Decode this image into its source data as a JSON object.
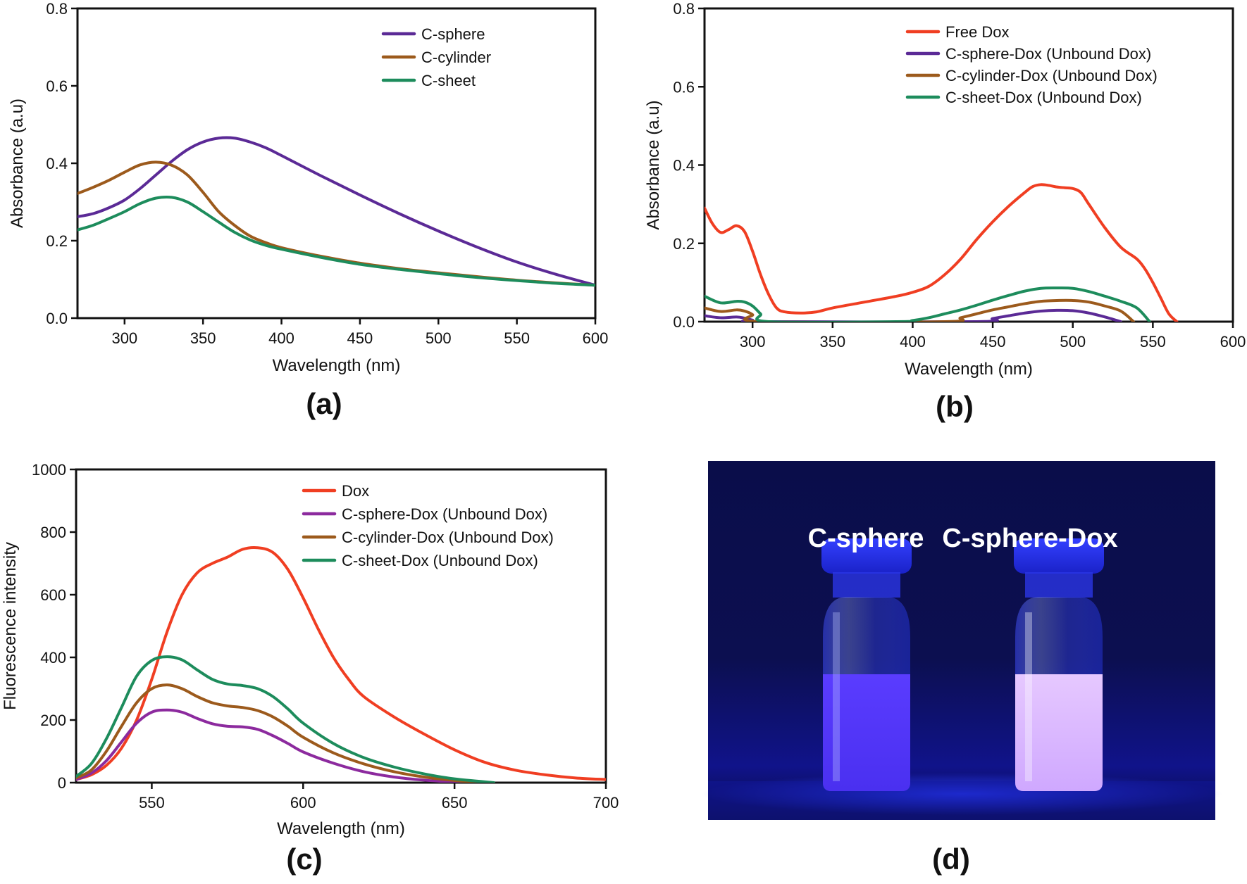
{
  "chart_data": [
    {
      "type": "line",
      "panel_label": "(a)",
      "xlabel": "Wavelength (nm)",
      "ylabel": "Absorbance (a.u)",
      "xlim": [
        270,
        600
      ],
      "ylim": [
        0.0,
        0.8
      ],
      "xticks": [
        300,
        350,
        400,
        450,
        500,
        550,
        600
      ],
      "yticks": [
        0.0,
        0.2,
        0.4,
        0.6,
        0.8
      ],
      "ytick_labels": [
        "0.0",
        "0.2",
        "0.4",
        "0.6",
        "0.8"
      ],
      "legend": "top-right",
      "series": [
        {
          "name": "C-sphere",
          "color": "#5b2a96",
          "x": [
            270,
            280,
            290,
            300,
            310,
            320,
            330,
            340,
            350,
            360,
            370,
            380,
            390,
            400,
            425,
            450,
            475,
            500,
            525,
            550,
            575,
            600
          ],
          "y": [
            0.262,
            0.27,
            0.285,
            0.305,
            0.335,
            0.37,
            0.405,
            0.435,
            0.455,
            0.465,
            0.465,
            0.455,
            0.44,
            0.42,
            0.368,
            0.318,
            0.27,
            0.225,
            0.183,
            0.145,
            0.113,
            0.085
          ]
        },
        {
          "name": "C-cylinder",
          "color": "#9c5a1c",
          "x": [
            270,
            280,
            290,
            300,
            310,
            320,
            330,
            340,
            350,
            360,
            370,
            380,
            390,
            400,
            425,
            450,
            475,
            500,
            525,
            550,
            575,
            600
          ],
          "y": [
            0.322,
            0.338,
            0.356,
            0.377,
            0.396,
            0.403,
            0.395,
            0.37,
            0.325,
            0.275,
            0.24,
            0.212,
            0.195,
            0.182,
            0.16,
            0.142,
            0.128,
            0.117,
            0.107,
            0.098,
            0.091,
            0.085
          ]
        },
        {
          "name": "C-sheet",
          "color": "#1d8c5c",
          "x": [
            270,
            280,
            290,
            300,
            310,
            320,
            330,
            340,
            350,
            360,
            370,
            380,
            390,
            400,
            425,
            450,
            475,
            500,
            525,
            550,
            575,
            600
          ],
          "y": [
            0.228,
            0.24,
            0.257,
            0.275,
            0.296,
            0.31,
            0.312,
            0.3,
            0.275,
            0.248,
            0.222,
            0.202,
            0.188,
            0.178,
            0.157,
            0.139,
            0.126,
            0.115,
            0.105,
            0.097,
            0.09,
            0.085
          ]
        }
      ]
    },
    {
      "type": "line",
      "panel_label": "(b)",
      "xlabel": "Wavelength (nm)",
      "ylabel": "Absorbance (a.u)",
      "xlim": [
        270,
        600
      ],
      "ylim": [
        0.0,
        0.8
      ],
      "xticks": [
        300,
        350,
        400,
        450,
        500,
        550,
        600
      ],
      "yticks": [
        0.0,
        0.2,
        0.4,
        0.6,
        0.8
      ],
      "ytick_labels": [
        "0.0",
        "0.2",
        "0.4",
        "0.6",
        "0.8"
      ],
      "legend": "top-right",
      "series": [
        {
          "name": "Free Dox",
          "color": "#f03e22",
          "x": [
            270,
            275,
            280,
            285,
            290,
            295,
            300,
            305,
            310,
            315,
            320,
            330,
            340,
            350,
            370,
            390,
            400,
            410,
            420,
            430,
            440,
            450,
            460,
            470,
            475,
            480,
            485,
            490,
            495,
            500,
            505,
            510,
            520,
            530,
            540,
            545,
            550,
            555,
            560,
            565
          ],
          "y": [
            0.29,
            0.25,
            0.228,
            0.235,
            0.245,
            0.23,
            0.18,
            0.12,
            0.07,
            0.035,
            0.025,
            0.022,
            0.025,
            0.035,
            0.05,
            0.065,
            0.075,
            0.09,
            0.12,
            0.16,
            0.21,
            0.255,
            0.295,
            0.33,
            0.345,
            0.35,
            0.348,
            0.344,
            0.342,
            0.34,
            0.33,
            0.3,
            0.24,
            0.19,
            0.16,
            0.135,
            0.1,
            0.06,
            0.02,
            0.0
          ]
        },
        {
          "name": "C-sphere-Dox (Unbound Dox)",
          "color": "#5b2a96",
          "x": [
            270,
            280,
            290,
            295,
            300,
            305,
            440,
            450,
            460,
            470,
            480,
            490,
            500,
            510,
            520,
            530
          ],
          "y": [
            0.015,
            0.01,
            0.012,
            0.009,
            0.004,
            0.0,
            0.0,
            0.008,
            0.015,
            0.022,
            0.027,
            0.029,
            0.028,
            0.022,
            0.012,
            0.0
          ]
        },
        {
          "name": "C-cylinder-Dox (Unbound Dox)",
          "color": "#9c5a1c",
          "x": [
            270,
            280,
            290,
            295,
            300,
            305,
            420,
            430,
            440,
            450,
            460,
            470,
            480,
            490,
            500,
            510,
            520,
            530,
            538
          ],
          "y": [
            0.035,
            0.026,
            0.03,
            0.027,
            0.018,
            0.0,
            0.0,
            0.01,
            0.02,
            0.03,
            0.038,
            0.046,
            0.052,
            0.054,
            0.054,
            0.05,
            0.04,
            0.027,
            0.0
          ]
        },
        {
          "name": "C-sheet-Dox (Unbound Dox)",
          "color": "#1d8c5c",
          "x": [
            270,
            280,
            290,
            295,
            300,
            305,
            310,
            390,
            400,
            410,
            420,
            430,
            440,
            450,
            460,
            470,
            480,
            490,
            500,
            510,
            520,
            530,
            540,
            548
          ],
          "y": [
            0.065,
            0.048,
            0.052,
            0.05,
            0.04,
            0.02,
            0.0,
            0.0,
            0.003,
            0.01,
            0.02,
            0.03,
            0.042,
            0.055,
            0.067,
            0.078,
            0.085,
            0.086,
            0.085,
            0.077,
            0.065,
            0.052,
            0.035,
            0.0
          ]
        }
      ]
    },
    {
      "type": "line",
      "panel_label": "(c)",
      "xlabel": "Wavelength (nm)",
      "ylabel": "Fluorescence intensity",
      "xlim": [
        525,
        700
      ],
      "ylim": [
        0,
        1000
      ],
      "xticks": [
        550,
        600,
        650,
        700
      ],
      "yticks": [
        0,
        200,
        400,
        600,
        800,
        1000
      ],
      "ytick_labels": [
        "0",
        "200",
        "400",
        "600",
        "800",
        "1000"
      ],
      "legend": "top-right",
      "series": [
        {
          "name": "Dox",
          "color": "#f03e22",
          "x": [
            525,
            530,
            535,
            540,
            545,
            550,
            555,
            560,
            565,
            570,
            575,
            580,
            585,
            590,
            595,
            600,
            605,
            610,
            615,
            620,
            630,
            640,
            650,
            660,
            670,
            680,
            690,
            700
          ],
          "y": [
            10,
            25,
            55,
            110,
            200,
            330,
            480,
            600,
            670,
            700,
            720,
            745,
            750,
            735,
            680,
            590,
            490,
            400,
            330,
            275,
            210,
            155,
            105,
            65,
            40,
            25,
            15,
            10
          ]
        },
        {
          "name": "C-sphere-Dox (Unbound Dox)",
          "color": "#8c2a9e",
          "x": [
            525,
            530,
            535,
            540,
            545,
            550,
            555,
            560,
            565,
            570,
            575,
            580,
            585,
            590,
            595,
            600,
            610,
            620,
            630,
            640,
            650,
            655
          ],
          "y": [
            10,
            30,
            70,
            130,
            190,
            225,
            232,
            225,
            205,
            188,
            180,
            178,
            170,
            150,
            125,
            98,
            62,
            35,
            18,
            8,
            2,
            0
          ]
        },
        {
          "name": "C-cylinder-Dox (Unbound Dox)",
          "color": "#9c5a1c",
          "x": [
            525,
            530,
            535,
            540,
            545,
            550,
            555,
            560,
            565,
            570,
            575,
            580,
            585,
            590,
            595,
            600,
            610,
            620,
            630,
            640,
            650,
            660
          ],
          "y": [
            15,
            40,
            100,
            180,
            255,
            300,
            312,
            300,
            275,
            255,
            245,
            240,
            230,
            210,
            180,
            145,
            95,
            60,
            35,
            18,
            7,
            0
          ]
        },
        {
          "name": "C-sheet-Dox (Unbound Dox)",
          "color": "#1d8c5c",
          "x": [
            525,
            530,
            535,
            540,
            545,
            550,
            555,
            560,
            565,
            570,
            575,
            580,
            585,
            590,
            595,
            600,
            610,
            620,
            630,
            640,
            650,
            663
          ],
          "y": [
            20,
            60,
            140,
            240,
            340,
            390,
            402,
            392,
            360,
            330,
            315,
            310,
            300,
            275,
            235,
            190,
            125,
            80,
            50,
            28,
            12,
            0
          ]
        }
      ]
    }
  ],
  "photo": {
    "panel_label": "(d)",
    "labels": [
      "C-sphere",
      "C-sphere-Dox"
    ]
  }
}
